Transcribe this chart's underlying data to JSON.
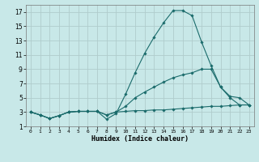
{
  "xlabel": "Humidex (Indice chaleur)",
  "bg_color": "#c8e8e8",
  "grid_color": "#b0cccc",
  "line_color": "#1a6b6b",
  "xlim": [
    -0.5,
    23.5
  ],
  "ylim": [
    1,
    18
  ],
  "yticks": [
    1,
    3,
    5,
    7,
    9,
    11,
    13,
    15,
    17
  ],
  "xticks": [
    0,
    1,
    2,
    3,
    4,
    5,
    6,
    7,
    8,
    9,
    10,
    11,
    12,
    13,
    14,
    15,
    16,
    17,
    18,
    19,
    20,
    21,
    22,
    23
  ],
  "series": [
    {
      "x": [
        0,
        1,
        2,
        3,
        4,
        5,
        6,
        7,
        8,
        9,
        10,
        11,
        12,
        13,
        14,
        15,
        16,
        17,
        18,
        19,
        20,
        21,
        22,
        23
      ],
      "y": [
        3.0,
        2.6,
        2.1,
        2.5,
        3.0,
        3.1,
        3.1,
        3.1,
        2.6,
        3.0,
        3.1,
        3.2,
        3.2,
        3.3,
        3.3,
        3.4,
        3.5,
        3.6,
        3.7,
        3.8,
        3.8,
        3.9,
        4.0,
        4.0
      ]
    },
    {
      "x": [
        0,
        1,
        2,
        3,
        4,
        5,
        6,
        7,
        8,
        9,
        10,
        11,
        12,
        13,
        14,
        15,
        16,
        17,
        18,
        19,
        20,
        21,
        22,
        23
      ],
      "y": [
        3.0,
        2.6,
        2.1,
        2.5,
        3.0,
        3.1,
        3.1,
        3.1,
        2.6,
        3.0,
        3.8,
        5.0,
        5.8,
        6.5,
        7.2,
        7.8,
        8.2,
        8.5,
        9.0,
        9.0,
        6.5,
        5.0,
        4.0,
        4.0
      ]
    },
    {
      "x": [
        0,
        1,
        2,
        3,
        4,
        5,
        6,
        7,
        8,
        9,
        10,
        11,
        12,
        13,
        14,
        15,
        16,
        17,
        18,
        19,
        20,
        21,
        22,
        23
      ],
      "y": [
        3.0,
        2.6,
        2.1,
        2.5,
        3.0,
        3.1,
        3.1,
        3.1,
        2.0,
        2.8,
        5.5,
        8.5,
        11.2,
        13.5,
        15.5,
        17.2,
        17.2,
        16.5,
        12.8,
        9.5,
        6.5,
        5.2,
        5.0,
        4.0
      ]
    }
  ]
}
